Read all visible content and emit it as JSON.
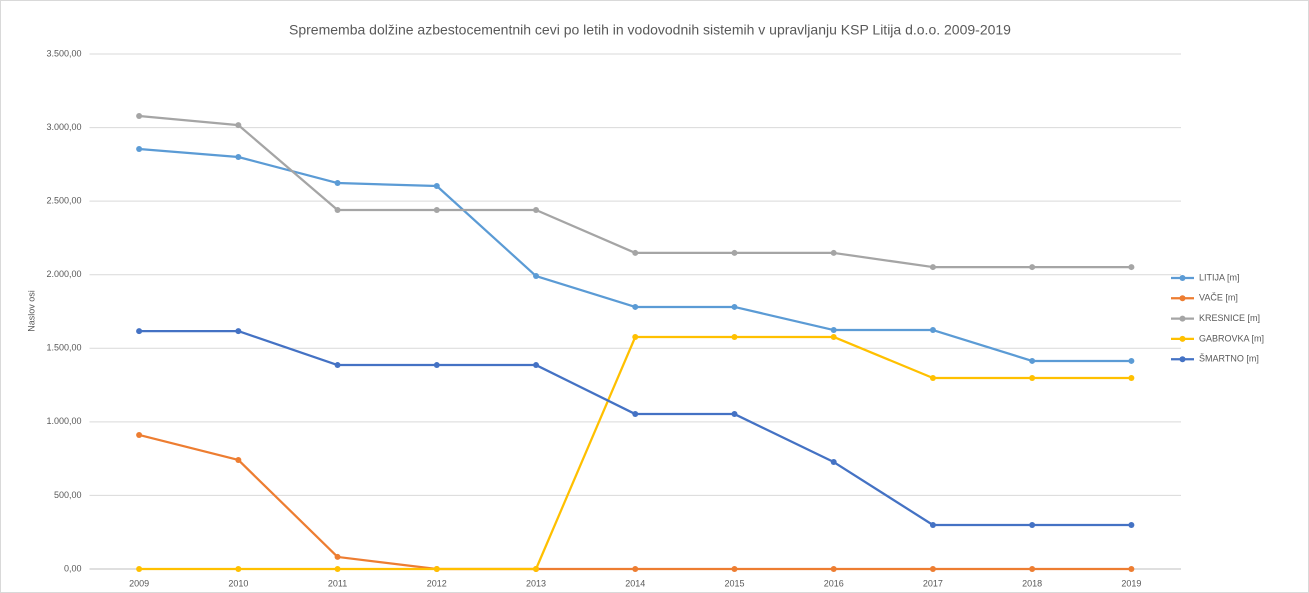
{
  "chart_data": {
    "type": "line",
    "title": "Sprememba dolžine azbestocementnih cevi po letih in vodovodnih sistemih v upravljanju KSP Litija d.o.o. 2009-2019",
    "y_label": "Naslov osi",
    "categories": [
      "2009",
      "2010",
      "2011",
      "2012",
      "2013",
      "2014",
      "2015",
      "2016",
      "2017",
      "2018",
      "2019"
    ],
    "series": [
      {
        "name": "LITIJA [m]",
        "color": "#5b9bd5",
        "values": [
          2854,
          2800,
          2623,
          2603,
          1991,
          1781,
          1781,
          1624,
          1624,
          1414,
          1414
        ]
      },
      {
        "name": "VAČE [m]",
        "color": "#ed7d31",
        "values": [
          911,
          741,
          82,
          0,
          0,
          0,
          0,
          0,
          0,
          0,
          0
        ]
      },
      {
        "name": "KRESNICE [m]",
        "color": "#a5a5a5",
        "values": [
          3079,
          3017,
          2440,
          2440,
          2440,
          2148,
          2148,
          2148,
          2052,
          2052,
          2052
        ]
      },
      {
        "name": "GABROVKA [m]",
        "color": "#ffc000",
        "values": [
          0,
          0,
          0,
          0,
          0,
          1577,
          1577,
          1577,
          1298,
          1298,
          1298
        ]
      },
      {
        "name": "ŠMARTNO [m]",
        "color": "#4472c4",
        "values": [
          1617,
          1617,
          1386,
          1386,
          1386,
          1053,
          1053,
          727,
          299,
          299,
          299
        ]
      }
    ],
    "ylim": [
      0,
      3500
    ],
    "yticks": [
      {
        "value": 0,
        "label": "0,00"
      },
      {
        "value": 500,
        "label": "500,00"
      },
      {
        "value": 1000,
        "label": "1.000,00"
      },
      {
        "value": 1500,
        "label": "1.500,00"
      },
      {
        "value": 2000,
        "label": "2.000,00"
      },
      {
        "value": 2500,
        "label": "2.500,00"
      },
      {
        "value": 3000,
        "label": "3.000,00"
      },
      {
        "value": 3500,
        "label": "3.500,00"
      }
    ],
    "grid": true,
    "legend": "right"
  }
}
